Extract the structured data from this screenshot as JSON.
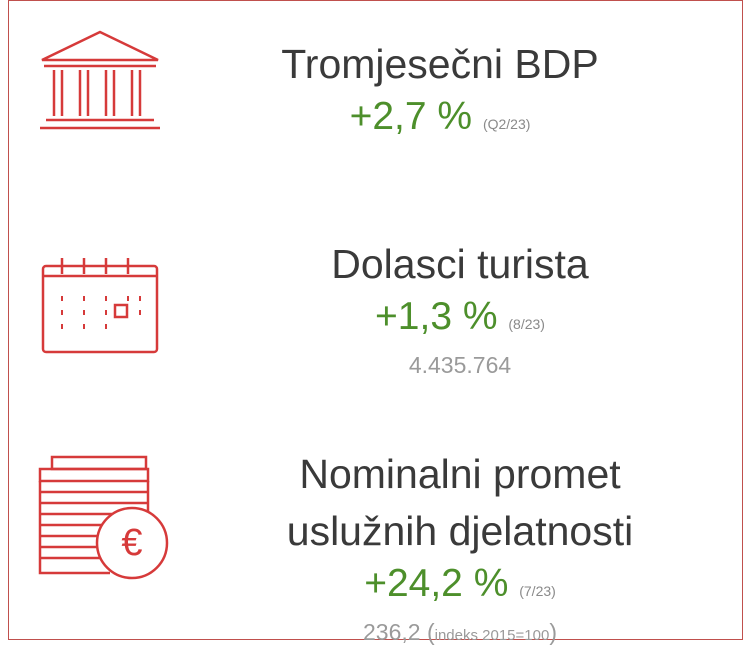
{
  "items": [
    {
      "title": "Tromjesečni BDP",
      "value": "+2,7 %",
      "period": "(Q2/23)"
    },
    {
      "title": "Dolasci turista",
      "value": "+1,3 %",
      "period": "(8/23)",
      "extra": "4.435.764"
    },
    {
      "title": "Nominalni promet uslužnih djelatnosti",
      "value": "+24,2 %",
      "period": "(7/23)",
      "extra": "236,2 (",
      "extra_note": "indeks 2015=100",
      "extra_close": ")"
    }
  ]
}
